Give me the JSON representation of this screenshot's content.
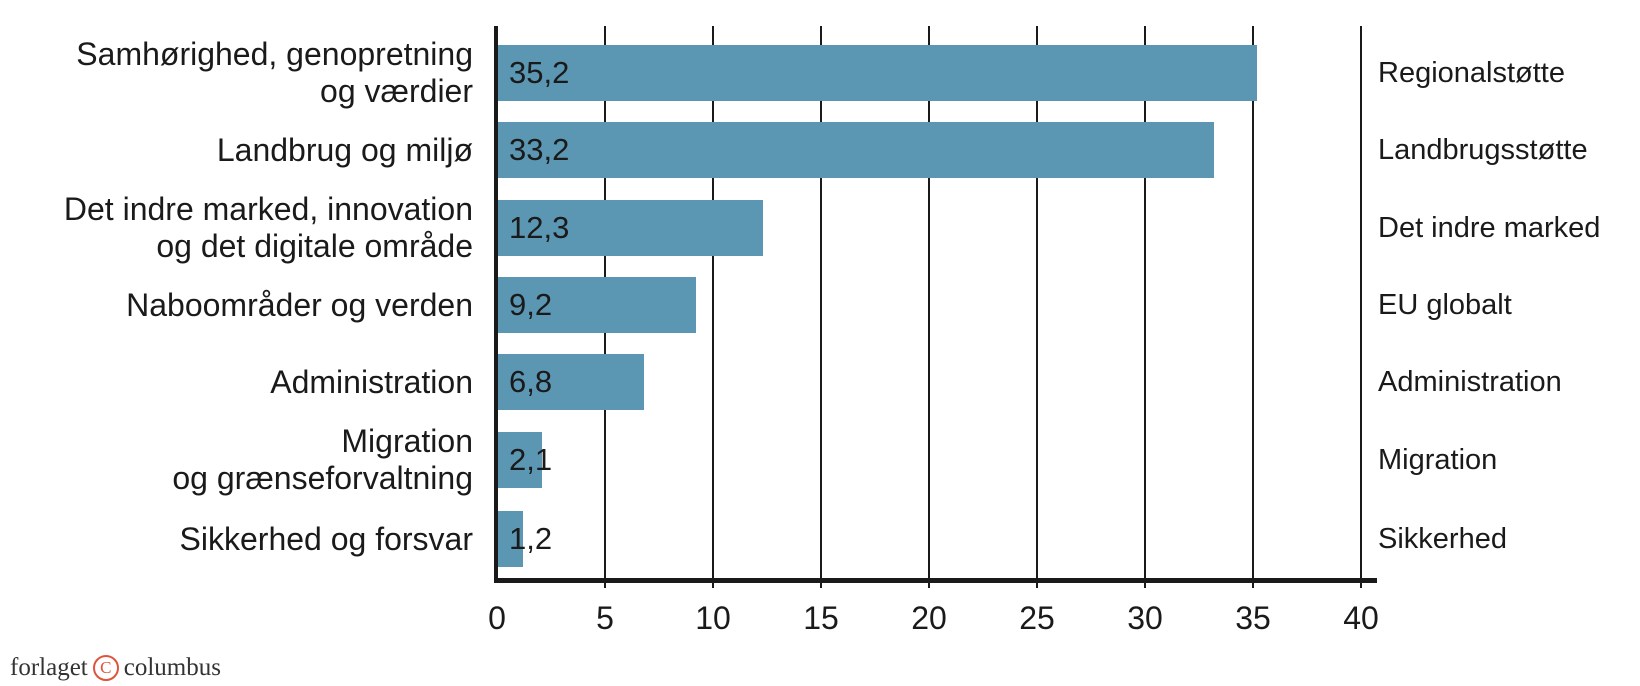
{
  "chart_data": {
    "type": "bar",
    "orientation": "horizontal",
    "title": "",
    "xlabel": "",
    "ylabel": "",
    "xlim": [
      0,
      40
    ],
    "x_ticks": [
      "0",
      "5",
      "10",
      "15",
      "20",
      "25",
      "30",
      "35",
      "40"
    ],
    "grid": true,
    "categories": [
      [
        "Samhørighed, genopretning",
        "og værdier"
      ],
      [
        "Landbrug og miljø"
      ],
      [
        "Det indre marked, innovation",
        "og det digitale område"
      ],
      [
        "Naboområder og verden"
      ],
      [
        "Administration"
      ],
      [
        "Migration",
        "og grænseforvaltning"
      ],
      [
        "Sikkerhed og forsvar"
      ]
    ],
    "right_labels": [
      "Regionalstøtte",
      "Landbrugsstøtte",
      "Det indre marked",
      "EU globalt",
      "Administration",
      "Migration",
      "Sikkerhed"
    ],
    "values": [
      35.2,
      33.2,
      12.3,
      9.2,
      6.8,
      2.1,
      1.2
    ],
    "value_labels": [
      "35,2",
      "33,2",
      "12,3",
      "9,2",
      "6,8",
      "2,1",
      "1,2"
    ],
    "bar_color": "#5b96b3"
  },
  "footer": {
    "publisher_left": "forlaget",
    "copyright_symbol": "C",
    "publisher_right": "columbus",
    "accent_color": "#e0533c"
  }
}
